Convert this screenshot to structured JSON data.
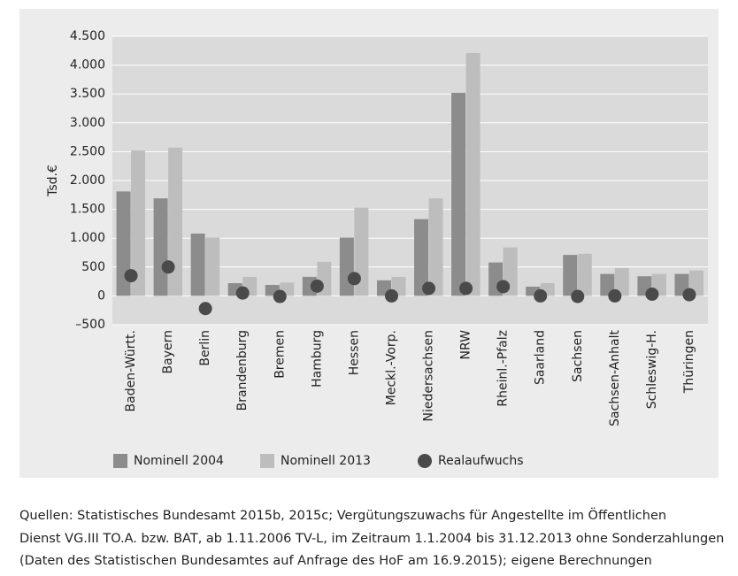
{
  "chart_data": {
    "type": "bar",
    "y_label": "Tsd.€",
    "categories": [
      "Baden-Württ.",
      "Bayern",
      "Berlin",
      "Brandenburg",
      "Bremen",
      "Hamburg",
      "Hessen",
      "Meckl.-Vorp.",
      "Niedersachsen",
      "NRW",
      "Rheinl.-Pfalz",
      "Saarland",
      "Sachsen",
      "Sachsen-Anhalt",
      "Schleswig-H.",
      "Thüringen"
    ],
    "series": [
      {
        "name": "Nominell 2004",
        "color": "#8c8c8c",
        "values": [
          1810,
          1690,
          1080,
          220,
          190,
          330,
          1010,
          270,
          1330,
          3520,
          580,
          160,
          710,
          380,
          340,
          380
        ]
      },
      {
        "name": "Nominell 2013",
        "color": "#bdbdbd",
        "values": [
          2520,
          2570,
          1010,
          330,
          230,
          590,
          1530,
          330,
          1690,
          4210,
          840,
          220,
          730,
          480,
          380,
          440
        ]
      },
      {
        "name": "Realaufwuchs",
        "color": "#4a4a4a",
        "type": "scatter",
        "values": [
          350,
          500,
          -220,
          50,
          -10,
          170,
          300,
          0,
          130,
          130,
          160,
          0,
          -10,
          0,
          30,
          20
        ]
      }
    ],
    "ylim": [
      -500,
      4500
    ],
    "yticks": [
      {
        "value": -500,
        "label": "–500"
      },
      0,
      500,
      {
        "value": 1000,
        "label": "1.000"
      },
      {
        "value": 1500,
        "label": "1.500"
      },
      {
        "value": 2000,
        "label": "2.000"
      },
      {
        "value": 2500,
        "label": "2.500"
      },
      {
        "value": 3000,
        "label": "3.000"
      },
      {
        "value": 3500,
        "label": "3.500"
      },
      {
        "value": 4000,
        "label": "4.000"
      },
      {
        "value": 4500,
        "label": "4.500"
      }
    ],
    "grid": true,
    "legend": "bottom",
    "source": [
      "Quellen: Statistisches Bundesamt 2015b, 2015c; Vergütungszuwachs für Angestellte im Öffentlichen",
      "Dienst VG.III TO.A. bzw. BAT, ab 1.11.2006 TV-L, im Zeitraum 1.1.2004 bis 31.12.2013 ohne Sonderzahlungen",
      "(Daten des Statistischen Bundesamtes auf Anfrage des HoF am 16.9.2015); eigene Berechnungen"
    ]
  }
}
